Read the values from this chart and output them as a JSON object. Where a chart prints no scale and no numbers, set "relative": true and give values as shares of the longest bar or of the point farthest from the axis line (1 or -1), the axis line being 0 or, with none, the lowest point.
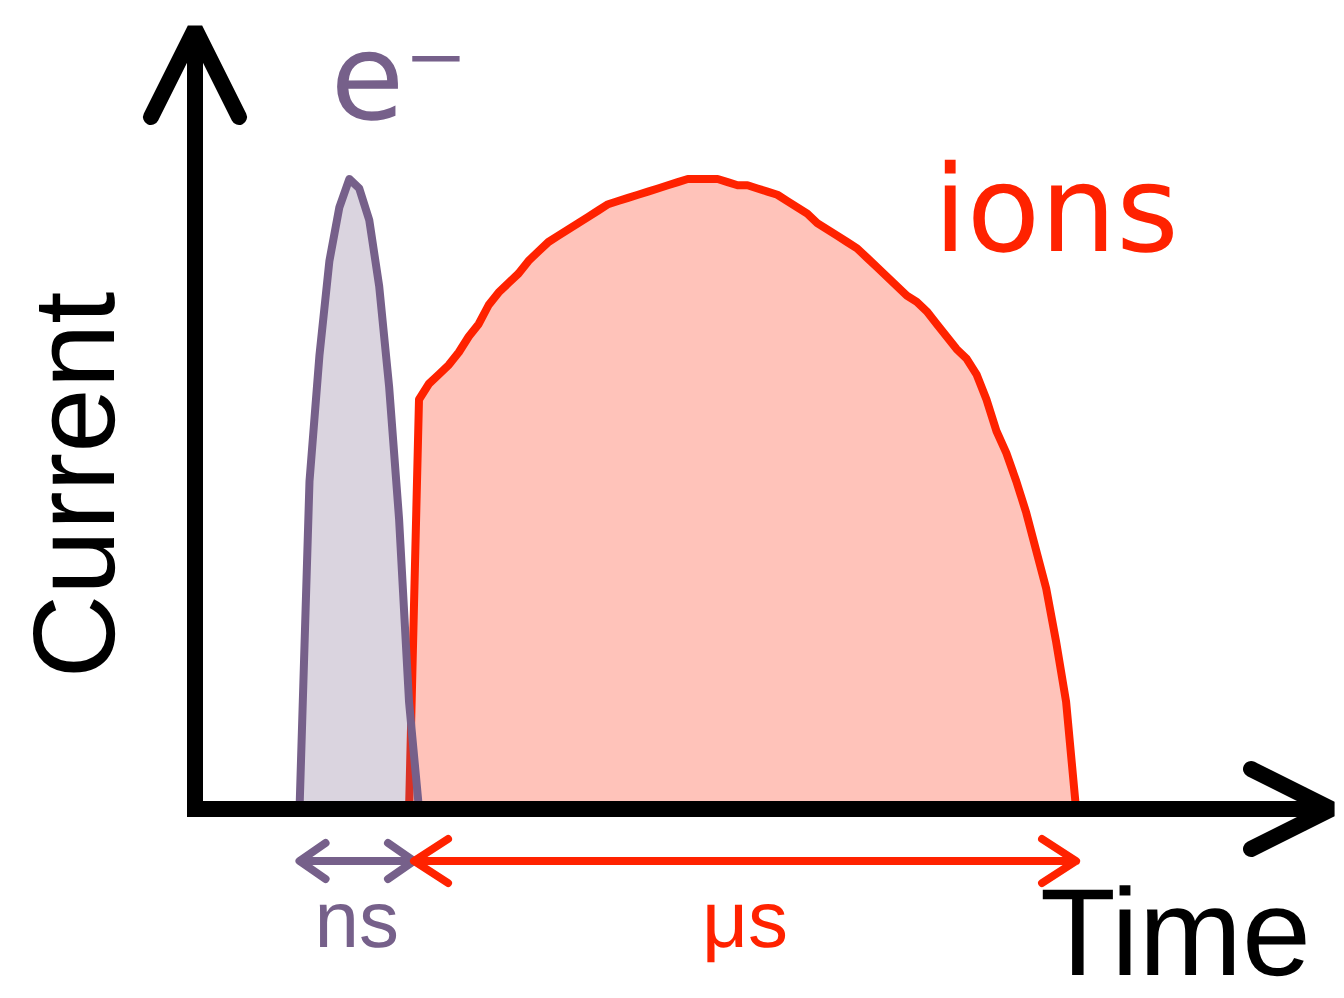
{
  "chart_data": {
    "type": "area",
    "relative": true,
    "xlabel": "Time",
    "ylabel": "Current",
    "categories": [
      null,
      null,
      null,
      null,
      null,
      null,
      null,
      null,
      null,
      null,
      null,
      null,
      null,
      null,
      null,
      null,
      null,
      null,
      null,
      null,
      null,
      null,
      null,
      null,
      null,
      null,
      null,
      null,
      null,
      null,
      null,
      null,
      null,
      null,
      null,
      null,
      null,
      null,
      null,
      null,
      null,
      null,
      null,
      null,
      null,
      null,
      null,
      null,
      null,
      null,
      null,
      null,
      null,
      null,
      null,
      null,
      null,
      null,
      null,
      null,
      null,
      null,
      null,
      null,
      null,
      null,
      null,
      null,
      null,
      null,
      null,
      null,
      null,
      null,
      null,
      null,
      null,
      null,
      null,
      null,
      null,
      null,
      null,
      null,
      null,
      null,
      null,
      null,
      null,
      null
    ],
    "series": [
      {
        "name": "e⁻",
        "color": "#76608a",
        "values": [
          null,
          null,
          null,
          null,
          null,
          null,
          null,
          null,
          null,
          null,
          0,
          0.52,
          0.72,
          0.87,
          0.955,
          1,
          0.985,
          0.935,
          0.83,
          0.67,
          0.46,
          0.17,
          0,
          null,
          null,
          null,
          null,
          null,
          null,
          null,
          null,
          null,
          null,
          null,
          null,
          null,
          null,
          null,
          null,
          null,
          null,
          null,
          null,
          null,
          null,
          null,
          null,
          null,
          null,
          null,
          null,
          null,
          null,
          null,
          null,
          null,
          null,
          null,
          null,
          null,
          null,
          null,
          null,
          null,
          null,
          null,
          null,
          null,
          null,
          null,
          null,
          null,
          null,
          null,
          null,
          null,
          null,
          null,
          null,
          null,
          null,
          null,
          null,
          null,
          null,
          null,
          null,
          null,
          null,
          null
        ]
      },
      {
        "name": "ions",
        "color": "#ff2200",
        "values": [
          null,
          null,
          null,
          null,
          null,
          null,
          null,
          null,
          null,
          null,
          null,
          null,
          null,
          null,
          null,
          null,
          null,
          null,
          null,
          null,
          null,
          0,
          0.65,
          0.675,
          0.69,
          0.705,
          0.725,
          0.75,
          0.77,
          0.8,
          0.82,
          0.835,
          0.85,
          0.87,
          0.885,
          0.9,
          0.91,
          0.92,
          0.93,
          0.94,
          0.95,
          0.96,
          0.965,
          0.97,
          0.975,
          0.98,
          0.985,
          0.99,
          0.995,
          1,
          1,
          1,
          1,
          0.995,
          0.99,
          0.99,
          0.985,
          0.98,
          0.975,
          0.965,
          0.955,
          0.945,
          0.93,
          0.92,
          0.91,
          0.9,
          0.89,
          0.875,
          0.86,
          0.845,
          0.83,
          0.815,
          0.805,
          0.79,
          0.77,
          0.75,
          0.73,
          0.715,
          0.69,
          0.65,
          0.6,
          0.565,
          0.52,
          0.47,
          0.41,
          0.35,
          0.265,
          0.17,
          0,
          null
        ]
      }
    ],
    "annotations": [
      "ns",
      "μs"
    ]
  }
}
